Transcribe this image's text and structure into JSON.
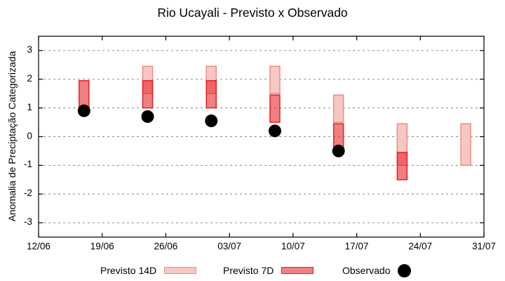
{
  "chart_data": {
    "type": "candlestick",
    "title": "Rio Ucayali - Previsto x Observado",
    "ylabel": "Anomalia de Preciptação Categorizada",
    "x_tick_labels": [
      "12/06",
      "19/06",
      "26/06",
      "03/07",
      "10/07",
      "17/07",
      "24/07",
      "31/07"
    ],
    "x_tick_days": [
      0,
      7,
      14,
      21,
      28,
      35,
      42,
      49
    ],
    "xlim_days": [
      0,
      49
    ],
    "y_ticks": [
      -3,
      -2,
      -1,
      0,
      1,
      2,
      3
    ],
    "ylim": [
      -3.5,
      3.5
    ],
    "grid": "horizontal dashed gray lines at integer y values",
    "legend_position": "bottom outside plot",
    "colors": {
      "previsto_14d_fill": "#f7c8c3",
      "previsto_14d_border": "#f08a7e",
      "previsto_7d_fill": "rgba(230,25,30,0.56)",
      "previsto_7d_border": "#e32322",
      "observado_fill": "#000000",
      "grid_line": "#8a8a8a",
      "axis": "#000000"
    },
    "series": [
      {
        "id": "previsto_14d",
        "label": "Previsto 14D",
        "type": "box"
      },
      {
        "id": "previsto_7d",
        "label": "Previsto 7D",
        "type": "box"
      },
      {
        "id": "observado",
        "label": "Observado",
        "type": "point"
      }
    ],
    "groups": [
      {
        "date": "17/06",
        "day": 5,
        "previsto_14d": null,
        "previsto_7d": [
          1.0,
          1.95
        ],
        "observado": 0.9
      },
      {
        "date": "24/06",
        "day": 12,
        "previsto_14d": [
          1.5,
          2.45
        ],
        "previsto_7d": [
          1.0,
          1.95
        ],
        "observado": 0.7
      },
      {
        "date": "01/07",
        "day": 19,
        "previsto_14d": [
          1.5,
          2.45
        ],
        "previsto_7d": [
          1.0,
          1.95
        ],
        "observado": 0.55
      },
      {
        "date": "08/07",
        "day": 26,
        "previsto_14d": [
          1.5,
          2.45
        ],
        "previsto_7d": [
          0.5,
          1.45
        ],
        "observado": 0.2
      },
      {
        "date": "15/07",
        "day": 33,
        "previsto_14d": [
          0.5,
          1.45
        ],
        "previsto_7d": [
          -0.5,
          0.45
        ],
        "observado": -0.5
      },
      {
        "date": "22/07",
        "day": 40,
        "previsto_14d": [
          -1.0,
          0.45
        ],
        "previsto_7d": [
          -1.5,
          -0.55
        ],
        "observado": null
      },
      {
        "date": "29/07",
        "day": 47,
        "previsto_14d": [
          -1.0,
          0.45
        ],
        "previsto_7d": null,
        "observado": null
      }
    ]
  },
  "legend": {
    "previsto_14d": "Previsto 14D",
    "previsto_7d": "Previsto 7D",
    "observado": "Observado"
  }
}
